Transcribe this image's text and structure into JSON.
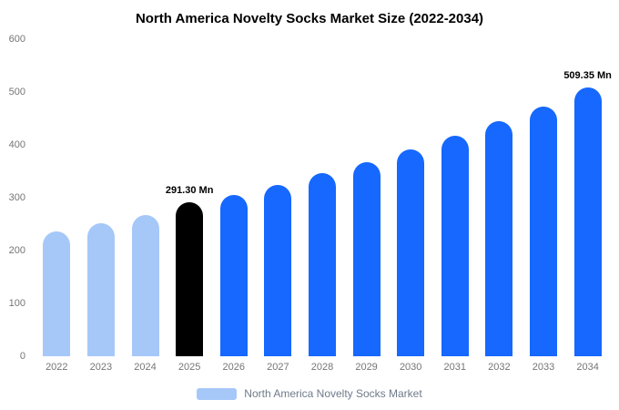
{
  "title": "North America Novelty Socks Market Size (2022-2034)",
  "legend": {
    "label": "North America Novelty Socks Market",
    "swatch_color": "#a6c8f8"
  },
  "colors": {
    "historical": "#a6c8f8",
    "base_year": "#000000",
    "forecast": "#1668ff"
  },
  "chart_data": {
    "type": "bar",
    "title": "North America Novelty Socks Market Size (2022-2034)",
    "xlabel": "",
    "ylabel": "",
    "ylim": [
      0,
      600
    ],
    "yticks": [
      0,
      100,
      200,
      300,
      400,
      500,
      600
    ],
    "grid": false,
    "legend_position": "bottom",
    "categories": [
      "2022",
      "2023",
      "2024",
      "2025",
      "2026",
      "2027",
      "2028",
      "2029",
      "2030",
      "2031",
      "2032",
      "2033",
      "2034"
    ],
    "values": [
      236,
      252,
      268,
      291.3,
      306,
      325,
      347,
      368,
      392,
      418,
      445,
      473,
      509.35
    ],
    "colors": [
      "#a6c8f8",
      "#a6c8f8",
      "#a6c8f8",
      "#000000",
      "#1668ff",
      "#1668ff",
      "#1668ff",
      "#1668ff",
      "#1668ff",
      "#1668ff",
      "#1668ff",
      "#1668ff",
      "#1668ff"
    ],
    "annotations": [
      {
        "category": "2025",
        "text": "291.30 Mn"
      },
      {
        "category": "2034",
        "text": "509.35 Mn"
      }
    ]
  }
}
